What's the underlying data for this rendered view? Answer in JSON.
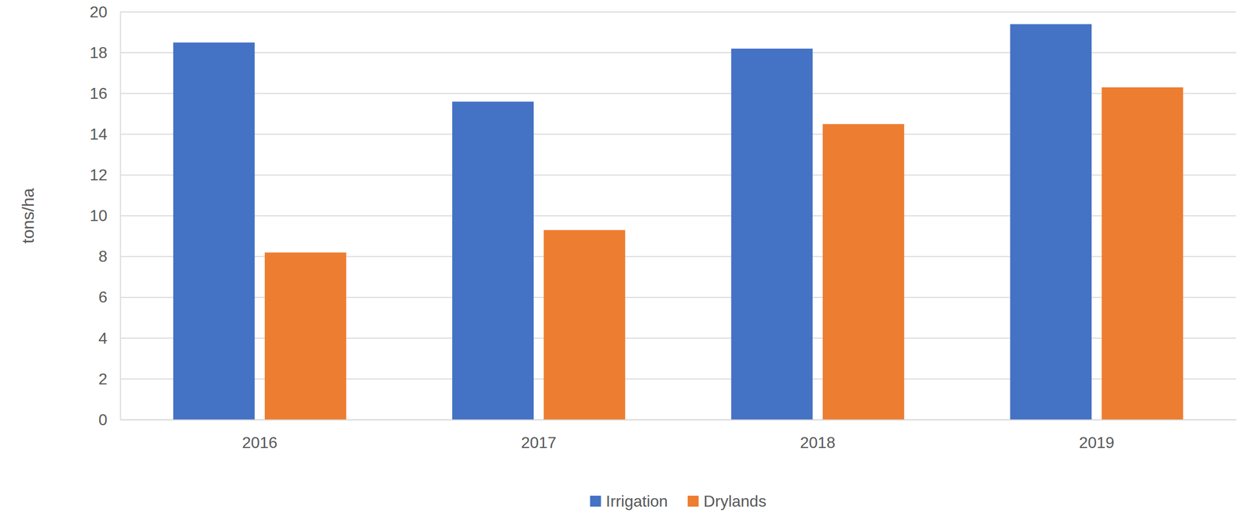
{
  "chart_data": {
    "type": "bar",
    "y_label": "tons/ha",
    "categories": [
      "2016",
      "2017",
      "2018",
      "2019"
    ],
    "series": [
      {
        "name": "Irrigation",
        "color": "#4472c4",
        "values": [
          18.5,
          15.6,
          18.2,
          19.4
        ]
      },
      {
        "name": "Drylands",
        "color": "#ed7d31",
        "values": [
          8.2,
          9.3,
          14.5,
          16.3
        ]
      }
    ],
    "ylim": [
      0,
      20
    ],
    "yticks": [
      0,
      2,
      4,
      6,
      8,
      10,
      12,
      14,
      16,
      18,
      20
    ],
    "grid": true,
    "legend": "bottom"
  }
}
